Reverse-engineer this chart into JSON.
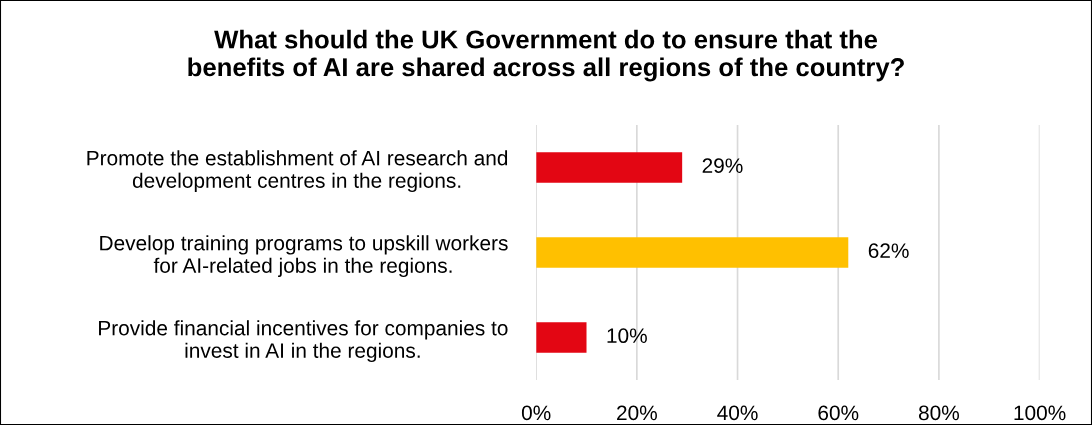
{
  "chart_data": {
    "type": "bar",
    "orientation": "horizontal",
    "title": "What should the UK Government do to ensure that the\nbenefits of AI are shared across all regions of the country?",
    "categories": [
      "Promote the establishment of AI research and\ndevelopment centres in the regions.",
      "Develop training programs to upskill workers\nfor AI-related jobs in the regions.",
      "Provide financial incentives for companies to\ninvest in AI in the regions."
    ],
    "values": [
      29,
      62,
      10
    ],
    "colors": [
      "#e30613",
      "#ffc000",
      "#e30613"
    ],
    "value_labels": [
      "29%",
      "62%",
      "10%"
    ],
    "xlim": [
      0,
      100
    ],
    "xticks": [
      {
        "value": 0,
        "label": "0%"
      },
      {
        "value": 20,
        "label": "20%"
      },
      {
        "value": 40,
        "label": "40%"
      },
      {
        "value": 60,
        "label": "60%"
      },
      {
        "value": 80,
        "label": "80%"
      },
      {
        "value": 100,
        "label": "100%"
      }
    ],
    "grid": "x",
    "legend": false
  }
}
